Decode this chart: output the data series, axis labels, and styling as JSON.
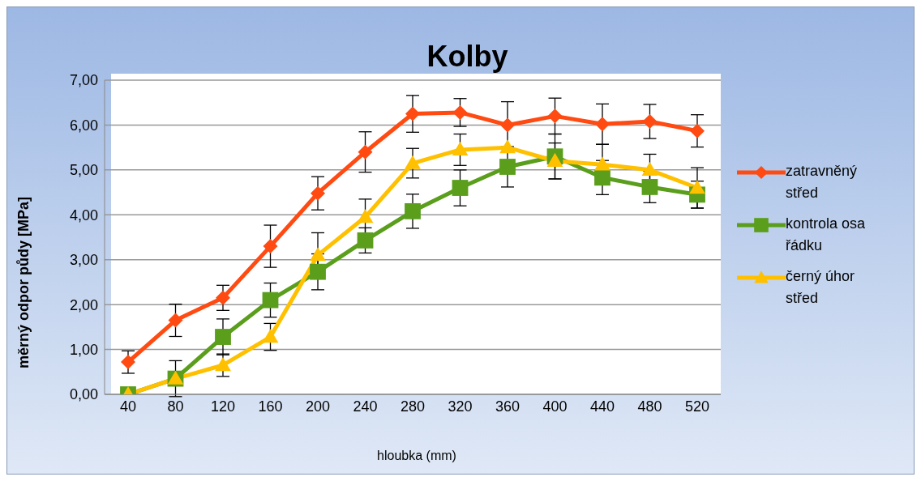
{
  "chart_data": {
    "type": "line",
    "title": "Kolby",
    "xlabel": "hloubka (mm)",
    "ylabel": "měrný odpor půdy [MPa]",
    "categories": [
      "40",
      "80",
      "120",
      "160",
      "200",
      "240",
      "280",
      "320",
      "360",
      "400",
      "440",
      "480",
      "520"
    ],
    "series": [
      {
        "name": "zatravněný střed",
        "color": "#ff4a12",
        "marker": "diamond",
        "values": [
          0.72,
          1.65,
          2.15,
          3.3,
          4.48,
          5.4,
          6.25,
          6.28,
          6.0,
          6.2,
          6.02,
          6.08,
          5.87
        ],
        "errors": [
          0.25,
          0.36,
          0.28,
          0.47,
          0.37,
          0.45,
          0.41,
          0.31,
          0.52,
          0.4,
          0.45,
          0.38,
          0.36
        ]
      },
      {
        "name": "kontrola osa řádku",
        "color": "#5a9e1c",
        "marker": "square",
        "values": [
          0,
          0.35,
          1.28,
          2.1,
          2.73,
          3.43,
          4.08,
          4.6,
          5.07,
          5.3,
          4.83,
          4.62,
          4.45
        ],
        "errors": [
          null,
          0.4,
          0.4,
          0.38,
          0.4,
          0.28,
          0.38,
          0.4,
          0.45,
          0.5,
          0.38,
          0.35,
          0.3
        ]
      },
      {
        "name": "černý úhor střed",
        "color": "#ffc000",
        "marker": "triangle",
        "values": [
          0,
          0.35,
          0.65,
          1.28,
          3.1,
          3.95,
          5.15,
          5.45,
          5.5,
          5.2,
          5.12,
          5.0,
          4.6
        ],
        "errors": [
          null,
          null,
          0.25,
          0.3,
          0.5,
          0.4,
          0.33,
          0.35,
          null,
          0.4,
          0.45,
          0.35,
          0.45
        ]
      }
    ],
    "ylim": [
      0,
      7
    ],
    "yticks": [
      {
        "value": 0,
        "label": "0,00"
      },
      {
        "value": 1,
        "label": "1,00"
      },
      {
        "value": 2,
        "label": "2,00"
      },
      {
        "value": 3,
        "label": "3,00"
      },
      {
        "value": 4,
        "label": "4,00"
      },
      {
        "value": 5,
        "label": "5,00"
      },
      {
        "value": 6,
        "label": "6,00"
      },
      {
        "value": 7,
        "label": "7,00"
      }
    ],
    "grid": "y",
    "legend": "right",
    "line_style": "solid"
  }
}
